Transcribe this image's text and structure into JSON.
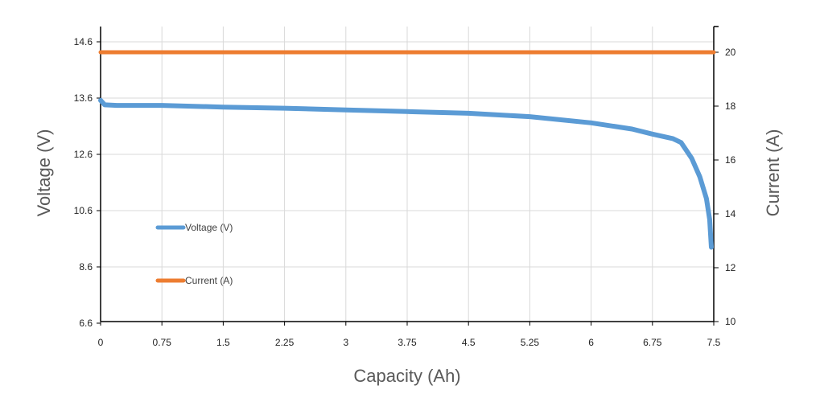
{
  "chart_data": {
    "type": "line",
    "title": "",
    "xlabel": "Capacity (Ah)",
    "ylabel": "Voltage (V)",
    "y2label": "Current (A)",
    "xlim": [
      0,
      7.5
    ],
    "x_ticks": [
      "0",
      "0.75",
      "1.5",
      "2.25",
      "3",
      "3.75",
      "4.5",
      "5.25",
      "6",
      "6.75",
      "7.5"
    ],
    "y_ticks": [
      "14.6",
      "13.6",
      "12.6",
      "10.6",
      "8.6",
      "6.6"
    ],
    "y2lim": [
      10,
      20
    ],
    "y2_ticks": [
      "20",
      "18",
      "16",
      "14",
      "12",
      "10"
    ],
    "grid": true,
    "legend_placement": "inside-left",
    "series": [
      {
        "name": "Voltage (V)",
        "axis": "left",
        "color": "#5b9bd5",
        "x": [
          0,
          0.05,
          0.2,
          0.75,
          1.5,
          2.25,
          3,
          3.75,
          4.5,
          5.25,
          6,
          6.5,
          6.75,
          7.0,
          7.1,
          7.23,
          7.33,
          7.41,
          7.45,
          7.47
        ],
        "y": [
          13.56,
          13.48,
          13.47,
          13.47,
          13.44,
          13.42,
          13.39,
          13.36,
          13.33,
          13.27,
          13.16,
          13.05,
          12.96,
          12.88,
          12.81,
          12.46,
          11.8,
          11.03,
          10.29,
          9.3
        ]
      },
      {
        "name": "Current (A)",
        "axis": "right",
        "color": "#ed7d31",
        "x": [
          0,
          7.5
        ],
        "y": [
          20,
          20
        ]
      }
    ]
  }
}
